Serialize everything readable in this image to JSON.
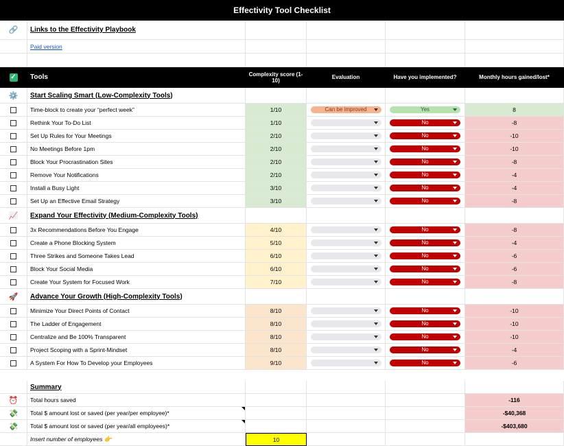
{
  "title": "Effectivity Tool Checklist",
  "links": {
    "icon": "link-icon",
    "heading": "Links to the Effectivity Playbook",
    "paid_version": "Paid version"
  },
  "header": {
    "icon": "check-icon",
    "tools": "Tools",
    "complexity": "Complexity score (1-10)",
    "evaluation": "Evaluation",
    "implemented": "Have you implemented?",
    "hours": "Monthly hours gained/lost*"
  },
  "sections": [
    {
      "icon": "gear-icon",
      "title": "Start Scaling Smart (Low-Complexity Tools)",
      "rows": [
        {
          "tool": "Time-block to create your “perfect week”",
          "score": "1/10",
          "evaluation": "Can be improved",
          "implemented": "Yes",
          "hours": "8"
        },
        {
          "tool": "Rethink Your To-Do List",
          "score": "1/10",
          "evaluation": "",
          "implemented": "No",
          "hours": "-8"
        },
        {
          "tool": "Set Up Rules for Your Meetings",
          "score": "2/10",
          "evaluation": "",
          "implemented": "No",
          "hours": "-10"
        },
        {
          "tool": "No Meetings Before 1pm",
          "score": "2/10",
          "evaluation": "",
          "implemented": "No",
          "hours": "-10"
        },
        {
          "tool": "Block Your Procrastination Sites",
          "score": "2/10",
          "evaluation": "",
          "implemented": "No",
          "hours": "-8"
        },
        {
          "tool": "Remove Your Notifications",
          "score": "2/10",
          "evaluation": "",
          "implemented": "No",
          "hours": "-4"
        },
        {
          "tool": "Install a Busy Light",
          "score": "3/10",
          "evaluation": "",
          "implemented": "No",
          "hours": "-4"
        },
        {
          "tool": "Set Up an Effective Email Strategy",
          "score": "3/10",
          "evaluation": "",
          "implemented": "No",
          "hours": "-8"
        }
      ]
    },
    {
      "icon": "chart-icon",
      "title": "Expand Your Effectivity (Medium-Complexity Tools)",
      "rows": [
        {
          "tool": "3x Recommendations Before You Engage",
          "score": "4/10",
          "evaluation": "",
          "implemented": "No",
          "hours": "-8"
        },
        {
          "tool": "Create a Phone Blocking System",
          "score": "5/10",
          "evaluation": "",
          "implemented": "No",
          "hours": "-4"
        },
        {
          "tool": "Three Strikes and Someone Takes Lead",
          "score": "6/10",
          "evaluation": "",
          "implemented": "No",
          "hours": "-6"
        },
        {
          "tool": "Block Your Social Media",
          "score": "6/10",
          "evaluation": "",
          "implemented": "No",
          "hours": "-6"
        },
        {
          "tool": "Create Your System for Focused Work",
          "score": "7/10",
          "evaluation": "",
          "implemented": "No",
          "hours": "-8"
        }
      ]
    },
    {
      "icon": "rocket-icon",
      "title": "Advance Your Growth (High-Complexity Tools)",
      "rows": [
        {
          "tool": "Minimize Your Direct Points of Contact",
          "score": "8/10",
          "evaluation": "",
          "implemented": "No",
          "hours": "-10"
        },
        {
          "tool": "The Ladder of Engagement",
          "score": "8/10",
          "evaluation": "",
          "implemented": "No",
          "hours": "-10"
        },
        {
          "tool": "Centralize and Be 100% Transparent",
          "score": "8/10",
          "evaluation": "",
          "implemented": "No",
          "hours": "-10"
        },
        {
          "tool": "Project Scoping with a Sprint-Mindset",
          "score": "8/10",
          "evaluation": "",
          "implemented": "No",
          "hours": "-4"
        },
        {
          "tool": "A System For How To Develop your Employees",
          "score": "9/10",
          "evaluation": "",
          "implemented": "No",
          "hours": "-6"
        }
      ]
    }
  ],
  "summary": {
    "title": "Summary",
    "total_hours_label": "Total hours saved",
    "total_hours": "-116",
    "per_employee_label": "Total $ amount lost or saved (per year/per employee)*",
    "per_employee": "-$40,368",
    "all_employees_label": "Total $ amount lost or saved (per year/all employees)*",
    "all_employees": "-$403,680",
    "employees_label": "Insert number of employees",
    "employees": "10"
  },
  "colors": {
    "header_bg": "#000000",
    "low": "#d9ead3",
    "medium": "#fff2cc",
    "high": "#fce5cd",
    "negative": "#f4cccc",
    "positive": "#d9ead3",
    "no_chip": "#c00000",
    "yes_chip": "#b7e1b0",
    "improve_chip": "#f6b38c",
    "input_cell": "#ffff00"
  }
}
